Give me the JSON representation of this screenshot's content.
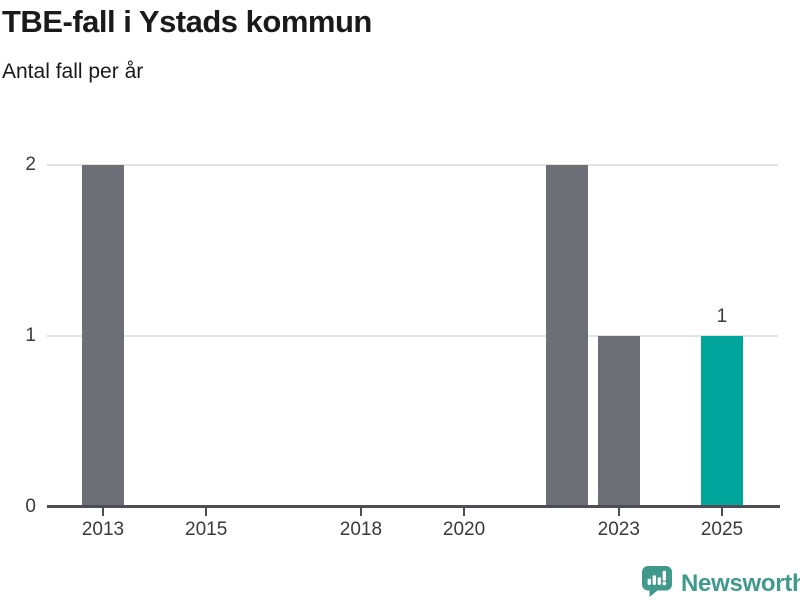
{
  "header": {
    "title": "TBE-fall i Ystads kommun",
    "subtitle": "Antal fall per år"
  },
  "chart_data": {
    "type": "bar",
    "title": "TBE-fall i Ystads kommun",
    "subtitle": "Antal fall per år",
    "xlabel": "",
    "ylabel": "Antal fall per år",
    "categories": [
      2013,
      2014,
      2015,
      2016,
      2017,
      2018,
      2019,
      2020,
      2021,
      2022,
      2023,
      2024,
      2025
    ],
    "values": [
      2,
      0,
      0,
      0,
      0,
      0,
      0,
      0,
      0,
      2,
      1,
      0,
      1
    ],
    "ylim": [
      0,
      2
    ],
    "yticks": [
      0,
      1,
      2
    ],
    "xtick_years": [
      2013,
      2015,
      2018,
      2020,
      2023,
      2025
    ],
    "xtick_labels": [
      "2013",
      "2015",
      "2018",
      "2020",
      "2023",
      "2025"
    ],
    "highlight_year": 2025,
    "data_labels": [
      {
        "year": 2025,
        "text": "1"
      }
    ],
    "grid": "horizontal-only",
    "legend": "none"
  },
  "colors": {
    "background": "#ffffff",
    "title_text": "#1a1a1a",
    "bar_default": "#6e6e76",
    "bar_highlight": "#00a69c",
    "gridline": "#e2e2e2",
    "axis": "#4d4d55",
    "tick_text": "#3a3a3a",
    "logo": "#3f9a8c"
  },
  "footer": {
    "brand": "Newsworthy"
  }
}
